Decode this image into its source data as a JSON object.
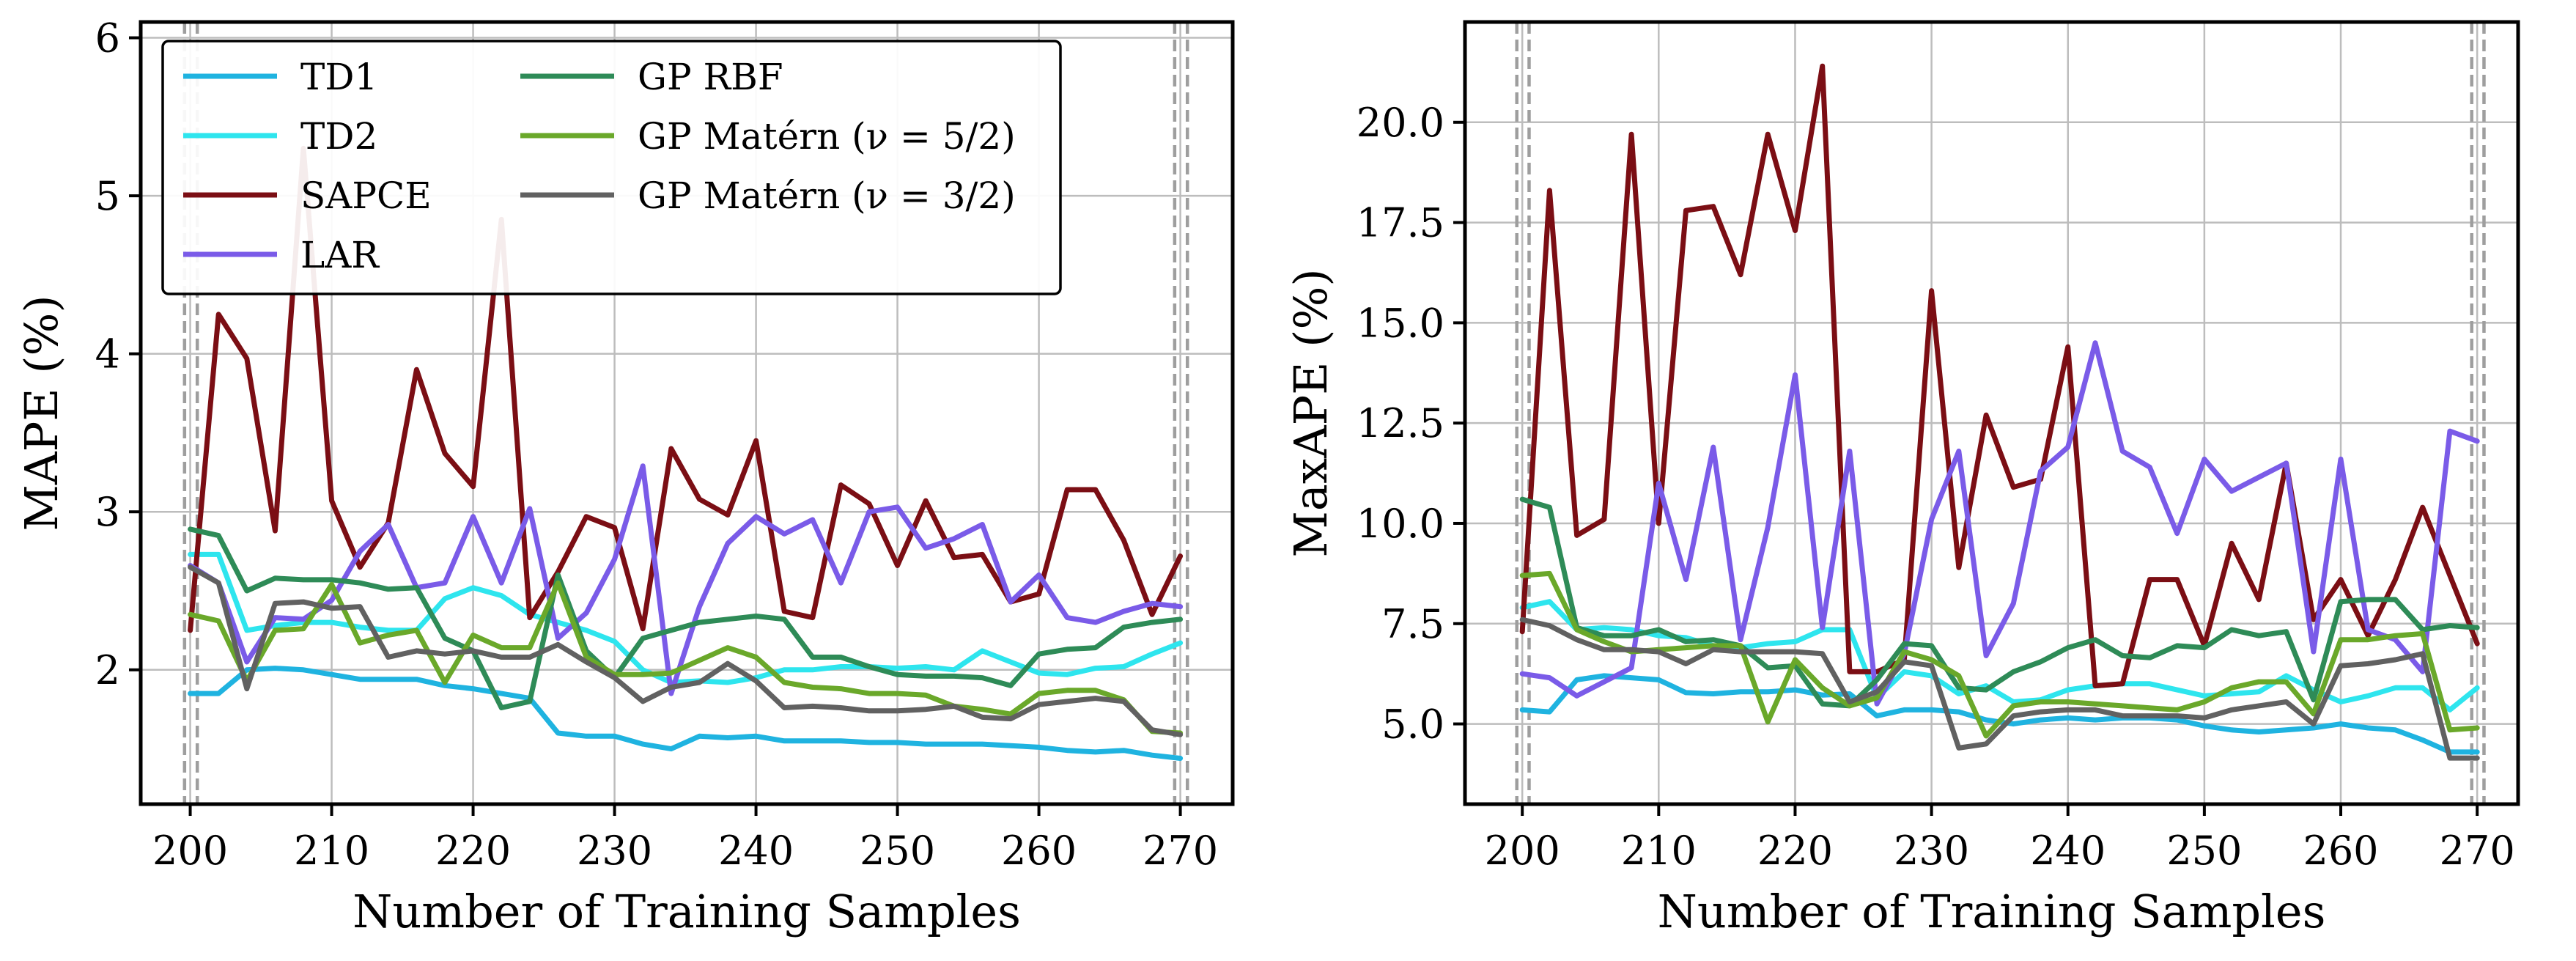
{
  "chart_data": [
    {
      "type": "line",
      "title": "",
      "xlabel": "Number of Training Samples",
      "ylabel": "MAPE (%)",
      "xlim": [
        196.5,
        273.7
      ],
      "ylim": [
        1.15,
        6.1
      ],
      "xticks": [
        200,
        210,
        220,
        230,
        240,
        250,
        260,
        270
      ],
      "yticks": [
        2,
        3,
        4,
        5,
        6
      ],
      "ytick_labels": [
        "2",
        "3",
        "4",
        "5",
        "6"
      ],
      "grid": true,
      "vlines": [
        199.6,
        200.5,
        269.6,
        270.5
      ],
      "legend": {
        "placement": "top-left",
        "entries": [
          "TD1",
          "TD2",
          "SAPCE",
          "LAR",
          "GP RBF",
          "GP Matérn (ν = 5/2)",
          "GP Matérn (ν = 3/2)"
        ]
      },
      "x": [
        200,
        202,
        204,
        206,
        208,
        210,
        212,
        214,
        216,
        218,
        220,
        222,
        224,
        226,
        228,
        230,
        232,
        234,
        236,
        238,
        240,
        242,
        244,
        246,
        248,
        250,
        252,
        254,
        256,
        258,
        260,
        262,
        264,
        266,
        268,
        270
      ],
      "series": [
        {
          "name": "TD1",
          "color": "#1fb3e0",
          "values": [
            1.85,
            1.85,
            2.0,
            2.01,
            2.0,
            1.97,
            1.94,
            1.94,
            1.94,
            1.9,
            1.88,
            1.85,
            1.82,
            1.6,
            1.58,
            1.58,
            1.53,
            1.5,
            1.58,
            1.57,
            1.58,
            1.55,
            1.55,
            1.55,
            1.54,
            1.54,
            1.53,
            1.53,
            1.53,
            1.52,
            1.51,
            1.49,
            1.48,
            1.49,
            1.46,
            1.44
          ]
        },
        {
          "name": "TD2",
          "color": "#2ee5ee",
          "values": [
            2.73,
            2.73,
            2.25,
            2.28,
            2.3,
            2.3,
            2.27,
            2.25,
            2.25,
            2.45,
            2.52,
            2.47,
            2.35,
            2.3,
            2.25,
            2.18,
            2.0,
            1.92,
            1.93,
            1.92,
            1.95,
            2.0,
            2.0,
            2.02,
            2.02,
            2.01,
            2.02,
            2.0,
            2.12,
            2.05,
            1.98,
            1.97,
            2.01,
            2.02,
            2.1,
            2.17
          ]
        },
        {
          "name": "SAPCE",
          "color": "#7b0e14",
          "values": [
            2.25,
            4.25,
            3.97,
            2.88,
            5.3,
            3.07,
            2.65,
            2.93,
            3.9,
            3.37,
            3.16,
            4.85,
            2.33,
            2.62,
            2.97,
            2.9,
            2.26,
            3.4,
            3.08,
            2.98,
            3.45,
            2.37,
            2.33,
            3.17,
            3.05,
            2.66,
            3.07,
            2.71,
            2.73,
            2.43,
            2.48,
            3.14,
            3.14,
            2.82,
            2.35,
            2.72
          ]
        },
        {
          "name": "LAR",
          "color": "#7a5be8",
          "values": [
            2.66,
            2.55,
            2.05,
            2.33,
            2.32,
            2.44,
            2.75,
            2.92,
            2.52,
            2.55,
            2.97,
            2.55,
            3.02,
            2.2,
            2.36,
            2.7,
            3.29,
            1.85,
            2.4,
            2.8,
            2.97,
            2.86,
            2.95,
            2.55,
            3.0,
            3.03,
            2.77,
            2.83,
            2.92,
            2.43,
            2.6,
            2.33,
            2.3,
            2.37,
            2.42,
            2.4
          ]
        },
        {
          "name": "GP RBF",
          "color": "#2e8b57",
          "values": [
            2.89,
            2.85,
            2.5,
            2.58,
            2.57,
            2.57,
            2.55,
            2.51,
            2.52,
            2.2,
            2.12,
            1.76,
            1.8,
            2.6,
            2.12,
            1.95,
            2.2,
            2.25,
            2.3,
            2.32,
            2.34,
            2.32,
            2.08,
            2.08,
            2.02,
            1.97,
            1.96,
            1.96,
            1.95,
            1.9,
            2.1,
            2.13,
            2.14,
            2.27,
            2.3,
            2.32
          ]
        },
        {
          "name": "GP Matérn (ν = 5/2)",
          "color": "#6aa82a",
          "values": [
            2.35,
            2.31,
            1.93,
            2.25,
            2.26,
            2.54,
            2.17,
            2.22,
            2.25,
            1.92,
            2.22,
            2.14,
            2.14,
            2.55,
            2.08,
            1.97,
            1.97,
            1.98,
            2.06,
            2.14,
            2.08,
            1.92,
            1.89,
            1.88,
            1.85,
            1.85,
            1.84,
            1.77,
            1.75,
            1.72,
            1.85,
            1.87,
            1.87,
            1.81,
            1.61,
            1.6
          ]
        },
        {
          "name": "GP Matérn (ν = 3/2)",
          "color": "#616161",
          "values": [
            2.65,
            2.55,
            1.88,
            2.42,
            2.43,
            2.39,
            2.4,
            2.08,
            2.12,
            2.1,
            2.12,
            2.08,
            2.08,
            2.16,
            2.05,
            1.95,
            1.8,
            1.89,
            1.92,
            2.04,
            1.93,
            1.76,
            1.77,
            1.76,
            1.74,
            1.74,
            1.75,
            1.77,
            1.7,
            1.69,
            1.78,
            1.8,
            1.82,
            1.8,
            1.62,
            1.59
          ]
        }
      ]
    },
    {
      "type": "line",
      "title": "",
      "xlabel": "Number of Training Samples",
      "ylabel": "MaxAPE (%)",
      "xlim": [
        195.8,
        273.0
      ],
      "ylim": [
        3.0,
        22.5
      ],
      "xticks": [
        200,
        210,
        220,
        230,
        240,
        250,
        260,
        270
      ],
      "yticks": [
        5.0,
        7.5,
        10.0,
        12.5,
        15.0,
        17.5,
        20.0
      ],
      "ytick_labels": [
        "5.0",
        "7.5",
        "10.0",
        "12.5",
        "15.0",
        "17.5",
        "20.0"
      ],
      "grid": true,
      "vlines": [
        199.6,
        200.5,
        269.6,
        270.5
      ],
      "x": [
        200,
        202,
        204,
        206,
        208,
        210,
        212,
        214,
        216,
        218,
        220,
        222,
        224,
        226,
        228,
        230,
        232,
        234,
        236,
        238,
        240,
        242,
        244,
        246,
        248,
        250,
        252,
        254,
        256,
        258,
        260,
        262,
        264,
        266,
        268,
        270
      ],
      "series": [
        {
          "name": "TD1",
          "color": "#1fb3e0",
          "values": [
            5.35,
            5.3,
            6.1,
            6.2,
            6.15,
            6.1,
            5.78,
            5.75,
            5.8,
            5.8,
            5.85,
            5.72,
            5.75,
            5.2,
            5.35,
            5.35,
            5.3,
            5.1,
            5.0,
            5.1,
            5.15,
            5.1,
            5.15,
            5.15,
            5.1,
            4.95,
            4.85,
            4.8,
            4.85,
            4.9,
            5.0,
            4.9,
            4.85,
            4.6,
            4.3,
            4.3
          ]
        },
        {
          "name": "TD2",
          "color": "#2ee5ee",
          "values": [
            7.9,
            8.05,
            7.35,
            7.4,
            7.35,
            7.2,
            7.15,
            6.95,
            6.9,
            7.0,
            7.05,
            7.35,
            7.35,
            5.65,
            6.3,
            6.2,
            5.75,
            5.95,
            5.55,
            5.6,
            5.85,
            5.95,
            6.0,
            6.0,
            5.85,
            5.7,
            5.75,
            5.8,
            6.2,
            5.85,
            5.55,
            5.7,
            5.9,
            5.9,
            5.35,
            5.9
          ]
        },
        {
          "name": "SAPCE",
          "color": "#7b0e14",
          "values": [
            7.3,
            18.3,
            9.7,
            10.1,
            19.7,
            10.0,
            17.8,
            17.9,
            16.2,
            19.7,
            17.3,
            21.4,
            6.3,
            6.3,
            6.6,
            15.8,
            8.9,
            12.7,
            10.9,
            11.1,
            14.4,
            5.95,
            6.0,
            8.6,
            8.6,
            6.95,
            9.5,
            8.1,
            11.5,
            7.6,
            8.6,
            7.2,
            8.6,
            10.4,
            8.7,
            7.0
          ]
        },
        {
          "name": "LAR",
          "color": "#7a5be8",
          "values": [
            6.25,
            6.15,
            5.7,
            6.05,
            6.4,
            11.0,
            8.6,
            11.9,
            7.1,
            9.9,
            13.7,
            7.4,
            11.8,
            5.5,
            6.75,
            10.1,
            11.8,
            6.7,
            8.0,
            11.3,
            11.9,
            14.5,
            11.8,
            11.4,
            9.75,
            11.6,
            10.8,
            11.15,
            11.5,
            6.8,
            11.6,
            7.35,
            7.1,
            6.3,
            12.3,
            12.05
          ]
        },
        {
          "name": "GP RBF",
          "color": "#2e8b57",
          "values": [
            10.6,
            10.4,
            7.4,
            7.2,
            7.2,
            7.35,
            7.05,
            7.1,
            6.95,
            6.4,
            6.45,
            5.5,
            5.45,
            6.1,
            7.0,
            6.95,
            5.9,
            5.85,
            6.3,
            6.55,
            6.9,
            7.1,
            6.7,
            6.65,
            6.95,
            6.9,
            7.35,
            7.2,
            7.3,
            5.6,
            8.05,
            8.1,
            8.1,
            7.35,
            7.45,
            7.4
          ]
        },
        {
          "name": "GP Matérn (ν = 5/2)",
          "color": "#6aa82a",
          "values": [
            8.7,
            8.75,
            7.35,
            7.05,
            6.8,
            6.85,
            6.9,
            6.95,
            6.95,
            5.05,
            6.6,
            5.9,
            5.45,
            5.65,
            6.8,
            6.6,
            6.2,
            4.7,
            5.45,
            5.55,
            5.55,
            5.5,
            5.45,
            5.4,
            5.35,
            5.55,
            5.9,
            6.05,
            6.05,
            5.25,
            7.1,
            7.1,
            7.2,
            7.25,
            4.85,
            4.9
          ]
        },
        {
          "name": "GP Matérn (ν = 3/2)",
          "color": "#616161",
          "values": [
            7.6,
            7.45,
            7.1,
            6.85,
            6.85,
            6.8,
            6.5,
            6.85,
            6.8,
            6.8,
            6.8,
            6.75,
            5.55,
            5.8,
            6.55,
            6.45,
            4.4,
            4.5,
            5.2,
            5.3,
            5.35,
            5.35,
            5.2,
            5.2,
            5.2,
            5.15,
            5.35,
            5.45,
            5.55,
            5.0,
            6.45,
            6.5,
            6.6,
            6.75,
            4.15,
            4.15
          ]
        }
      ]
    }
  ]
}
